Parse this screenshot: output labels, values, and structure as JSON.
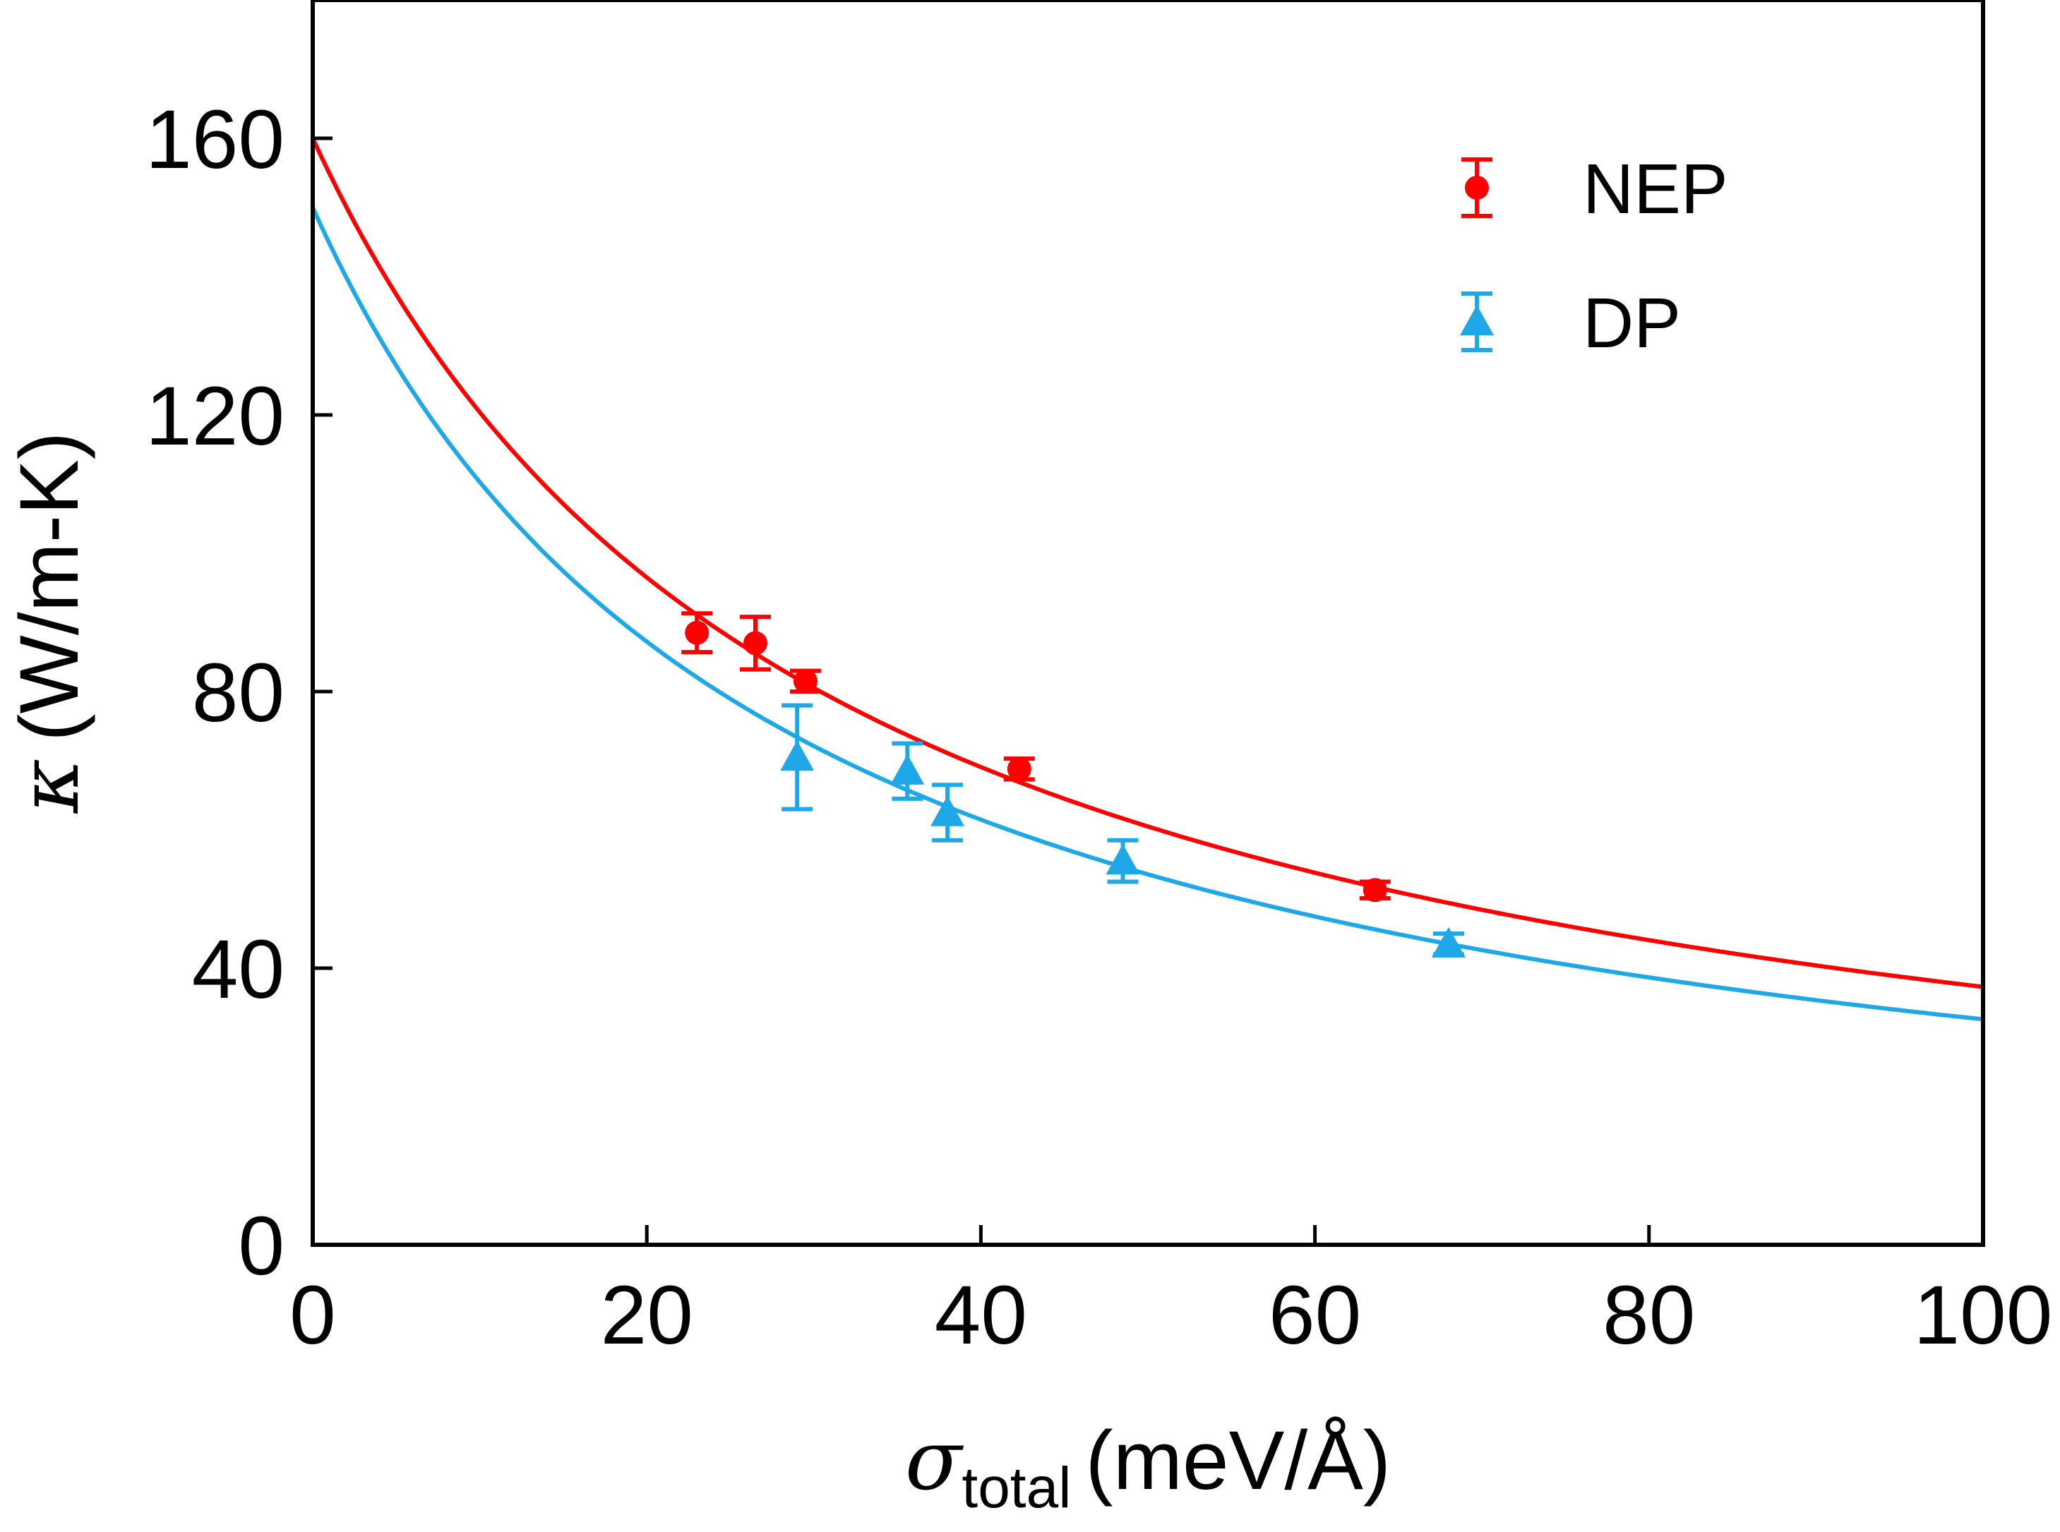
{
  "chart_data": {
    "type": "scatter",
    "title": "",
    "xlabel": {
      "symbol": "σ",
      "subscript": "total",
      "unit": "(meV/Å)"
    },
    "ylabel": {
      "symbol": "κ",
      "unit": "(W/m-K)"
    },
    "xlim": [
      0,
      100
    ],
    "ylim": [
      0,
      180
    ],
    "xticks": [
      0,
      20,
      40,
      60,
      80,
      100
    ],
    "yticks": [
      0,
      40,
      80,
      120,
      160
    ],
    "grid": false,
    "legend_position": "top-right",
    "series": [
      {
        "name": "NEP",
        "marker": "circle",
        "color": "#ff0000",
        "points": [
          {
            "x": 23,
            "y": 88.5,
            "err": 2.8
          },
          {
            "x": 26.5,
            "y": 87,
            "err": 3.8
          },
          {
            "x": 29.5,
            "y": 81.5,
            "err": 1.5
          },
          {
            "x": 42.3,
            "y": 68.8,
            "err": 1.5
          },
          {
            "x": 63.6,
            "y": 51.3,
            "err": 1.2
          }
        ],
        "fit": {
          "model": "a/(1+b*x)",
          "a": 160,
          "b": 0.0329
        }
      },
      {
        "name": "DP",
        "marker": "triangle",
        "color": "#1ea8e8",
        "points": [
          {
            "x": 29,
            "y": 70.5,
            "err": 7.5
          },
          {
            "x": 35.6,
            "y": 68.5,
            "err": 4
          },
          {
            "x": 38,
            "y": 62.5,
            "err": 4
          },
          {
            "x": 48.5,
            "y": 55.5,
            "err": 3
          },
          {
            "x": 68,
            "y": 43.5,
            "err": 1.5
          }
        ],
        "fit": {
          "model": "a/(1+b*x)",
          "a": 150,
          "b": 0.036
        }
      }
    ]
  }
}
